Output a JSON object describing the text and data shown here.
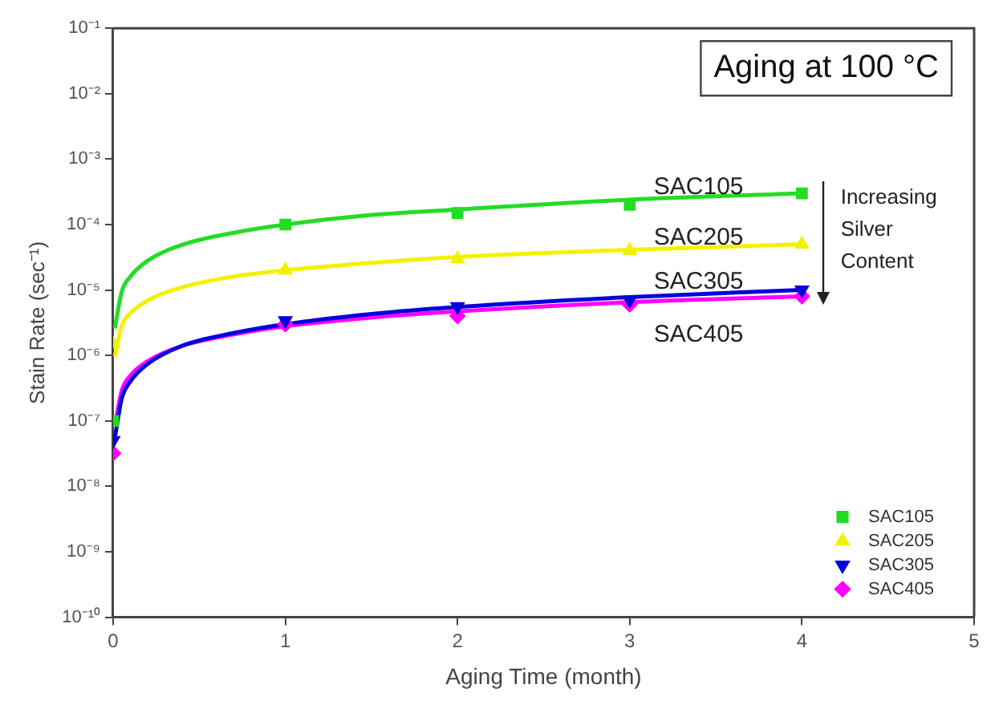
{
  "chart_data": {
    "type": "scatter",
    "title": "Aging at 100 °C",
    "xlabel": "Aging Time (month)",
    "ylabel": "Stain Rate (sec⁻¹)",
    "x": [
      0,
      1,
      2,
      3,
      4
    ],
    "series": [
      {
        "name": "SAC105",
        "color": "#22dd22",
        "marker": "square",
        "values": [
          1e-07,
          0.0001,
          0.00015,
          0.0002,
          0.0003
        ]
      },
      {
        "name": "SAC205",
        "color": "#f2f200",
        "marker": "triangle",
        "values": [
          1.5e-06,
          2e-05,
          3e-05,
          4e-05,
          5e-05
        ]
      },
      {
        "name": "SAC305",
        "color": "#0000dd",
        "marker": "triangle_down",
        "values": [
          5e-08,
          3.4e-06,
          5.6e-06,
          7e-06,
          1e-05
        ]
      },
      {
        "name": "SAC405",
        "color": "#ff00ff",
        "marker": "diamond",
        "values": [
          3.2e-08,
          3e-06,
          4e-06,
          6e-06,
          8e-06
        ]
      },
      {
        "type": "line",
        "color": "#22dd22",
        "x": [
          0.01,
          0.05,
          0.1,
          0.2,
          0.4,
          0.7,
          1,
          1.5,
          2,
          3,
          4
        ],
        "values": [
          2.6e-06,
          9.4e-06,
          1.6e-05,
          2.8e-05,
          4.9e-05,
          7.5e-05,
          0.0001,
          0.00014,
          0.00017,
          0.00024,
          0.0003
        ]
      },
      {
        "type": "line",
        "color": "#f2f200",
        "x": [
          0.01,
          0.05,
          0.1,
          0.2,
          0.4,
          0.7,
          1,
          1.5,
          2,
          3,
          4
        ],
        "values": [
          9.6e-07,
          2.8e-06,
          4.4e-06,
          6.9e-06,
          1.1e-05,
          1.6e-05,
          2e-05,
          2.6e-05,
          3.2e-05,
          4.1e-05,
          5e-05
        ]
      },
      {
        "type": "line",
        "color": "#0000dd",
        "x": [
          0.01,
          0.05,
          0.1,
          0.2,
          0.4,
          0.7,
          1,
          1.5,
          2,
          3,
          4
        ],
        "values": [
          5.5e-08,
          2.2e-07,
          4e-07,
          7.4e-07,
          1.4e-06,
          2.2e-06,
          3e-06,
          4.3e-06,
          5.5e-06,
          7.8e-06,
          1e-05
        ]
      },
      {
        "type": "line",
        "color": "#ff00ff",
        "x": [
          0.01,
          0.05,
          0.1,
          0.2,
          0.4,
          0.7,
          1,
          1.5,
          2,
          3,
          4
        ],
        "values": [
          8.4e-08,
          2.9e-07,
          4.9e-07,
          8.2e-07,
          1.4e-06,
          2.1e-06,
          2.8e-06,
          3.8e-06,
          4.7e-06,
          6.5e-06,
          8e-06
        ]
      }
    ],
    "annotations": [
      "SAC105",
      "SAC205",
      "SAC305",
      "SAC405",
      "Increasing Silver Content"
    ],
    "log": "y",
    "grid": false,
    "legend": "bottom right",
    "line_style": "solid",
    "xlim": [
      0,
      5
    ],
    "xticks": [
      0,
      1,
      2,
      3,
      4,
      5
    ],
    "ylim": [
      1e-10,
      0.1
    ],
    "yticks": [
      {
        "value": 1e-10,
        "label": "10⁻¹⁰"
      },
      {
        "value": 1e-09,
        "label": "10⁻⁹"
      },
      {
        "value": 1e-08,
        "label": "10⁻⁸"
      },
      {
        "value": 1e-07,
        "label": "10⁻⁷"
      },
      {
        "value": 1e-06,
        "label": "10⁻⁶"
      },
      {
        "value": 1e-05,
        "label": "10⁻⁵"
      },
      {
        "value": 0.0001,
        "label": "10⁻⁴"
      },
      {
        "value": 0.001,
        "label": "10⁻³"
      },
      {
        "value": 0.01,
        "label": "10⁻²"
      },
      {
        "value": 0.1,
        "label": "10⁻¹"
      }
    ]
  }
}
